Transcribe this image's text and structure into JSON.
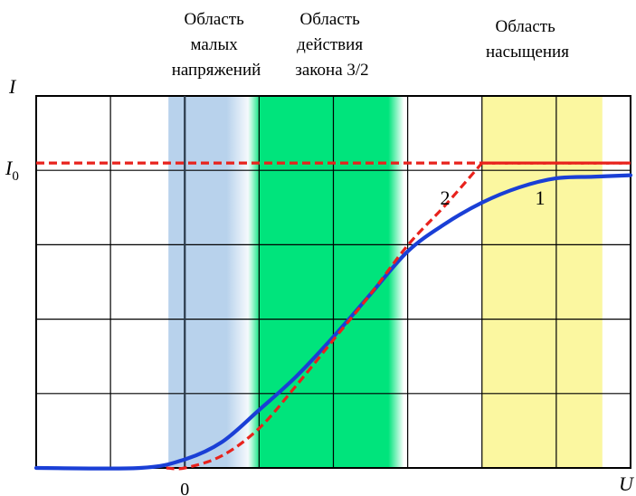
{
  "chart_data": {
    "type": "line",
    "title": "",
    "xlabel": "U",
    "ylabel": "I",
    "xlim": [
      -2,
      6
    ],
    "ylim": [
      0,
      1.22
    ],
    "grid": true,
    "y_reference": {
      "label": "I",
      "label_sub": "0",
      "value": 1.0
    },
    "x_tick_labels": [
      {
        "value": 0,
        "label": "0"
      }
    ],
    "regions": [
      {
        "id": "small",
        "lines": [
          "Область",
          "малых",
          "напряжений"
        ],
        "x_range": [
          -0.22,
          0.9
        ],
        "color": "#b8d2ec"
      },
      {
        "id": "law32",
        "lines": [
          "Область",
          "действия",
          "закона 3/2"
        ],
        "x_range": [
          0.85,
          2.95
        ],
        "color": "#00e47c"
      },
      {
        "id": "saturation",
        "lines": [
          "Область",
          "насыщения"
        ],
        "x_range": [
          4.0,
          5.62
        ],
        "color": "#fbf7a0"
      }
    ],
    "series": [
      {
        "name": "1",
        "color": "#1a3fd6",
        "style": "solid",
        "x": [
          -2.0,
          -0.6,
          0.0,
          0.5,
          1.0,
          1.5,
          2.0,
          2.5,
          3.0,
          3.5,
          4.0,
          4.5,
          5.0,
          5.5,
          6.0
        ],
        "y": [
          0.0,
          0.0,
          0.028,
          0.085,
          0.19,
          0.3,
          0.43,
          0.57,
          0.71,
          0.8,
          0.87,
          0.92,
          0.95,
          0.955,
          0.96
        ]
      },
      {
        "name": "2",
        "color": "#e8221c",
        "style": "dashed",
        "x": [
          -0.25,
          0.0,
          0.5,
          1.0,
          1.5,
          2.0,
          2.5,
          3.0,
          3.5,
          4.0,
          6.0
        ],
        "y": [
          0.0,
          0.0,
          0.04,
          0.13,
          0.27,
          0.42,
          0.57,
          0.73,
          0.86,
          1.0,
          1.0
        ]
      }
    ],
    "series_labels": [
      {
        "text": "1",
        "x": 4.8
      },
      {
        "text": "2",
        "x": 3.5
      }
    ],
    "y_reference_line": {
      "color": "#e8221c",
      "style": "dashed",
      "value": 1.0
    }
  }
}
